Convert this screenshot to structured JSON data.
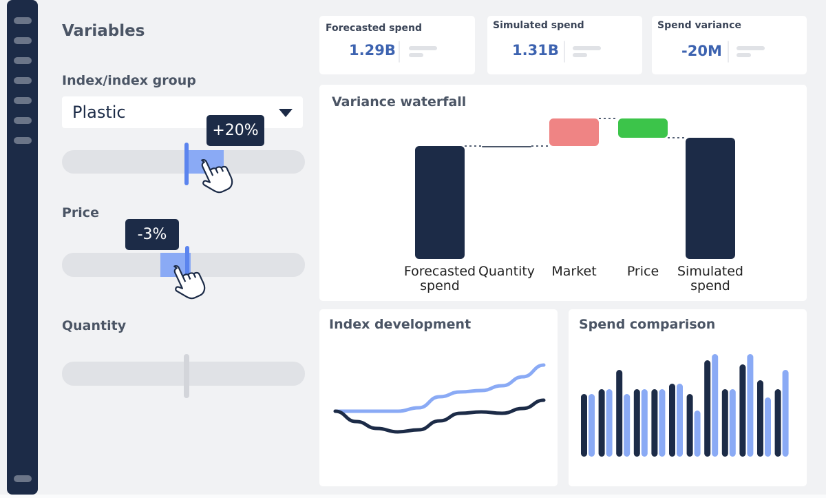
{
  "variables": {
    "title": "Variables",
    "index_group": {
      "label": "Index/index group",
      "selected": "Plastic",
      "change": "+20%"
    },
    "price": {
      "label": "Price",
      "change": "-3%"
    },
    "quantity": {
      "label": "Quantity"
    }
  },
  "kpis": [
    {
      "title": "Forecasted spend",
      "value": "1.29B"
    },
    {
      "title": "Simulated spend",
      "value": "1.31B"
    },
    {
      "title": "Spend variance",
      "value": "-20M"
    }
  ],
  "waterfall": {
    "title": "Variance waterfall",
    "categories": [
      "Forecasted spend",
      "Quantity",
      "Market",
      "Price",
      "Simulated spend"
    ],
    "values": [
      164,
      0,
      40,
      -28,
      176
    ],
    "bar_kinds": [
      "total",
      "delta",
      "delta",
      "delta",
      "total"
    ],
    "colors": [
      "#1c2b47",
      "#4a5568",
      "#ef8484",
      "#3cc44a",
      "#1c2b47"
    ]
  },
  "index_development": {
    "title": "Index development",
    "x": [
      0,
      1,
      2,
      3,
      4,
      5,
      6,
      7,
      8,
      9,
      10
    ],
    "series": [
      {
        "color": "#8aaaf5",
        "values": [
          63,
          63,
          63,
          63,
          68,
          84,
          91,
          93,
          100,
          113,
          130
        ]
      },
      {
        "color": "#1c2b47",
        "values": [
          63,
          48,
          38,
          33,
          36,
          49,
          60,
          62,
          60,
          67,
          79
        ]
      }
    ]
  },
  "spend_comparison": {
    "title": "Spend comparison",
    "series": [
      {
        "color": "#1c2b47",
        "values": [
          91,
          98,
          126,
          98,
          98,
          106,
          91,
          140,
          98,
          134,
          111,
          98
        ]
      },
      {
        "color": "#8aaaf5",
        "values": [
          91,
          98,
          91,
          98,
          98,
          106,
          67,
          149,
          98,
          149,
          86,
          126
        ]
      }
    ]
  }
}
